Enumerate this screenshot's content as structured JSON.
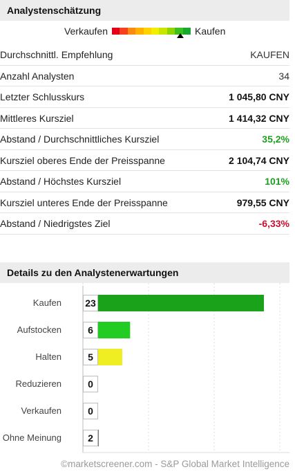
{
  "summary": {
    "title": "Analystenschätzung",
    "scale": {
      "left_label": "Verkaufen",
      "right_label": "Kaufen",
      "colors": [
        "#e3001b",
        "#f7411c",
        "#fb8a12",
        "#ffb000",
        "#ffd200",
        "#f2ee00",
        "#c8e600",
        "#8fd400",
        "#3dbf1f",
        "#17a92f"
      ],
      "marker_level": 0.87
    },
    "rows": [
      {
        "label": "Durchschnittl. Empfehlung",
        "value": "KAUFEN",
        "style": "plain"
      },
      {
        "label": "Anzahl Analysten",
        "value": "34",
        "style": "plain"
      },
      {
        "label": "Letzter Schlusskurs",
        "value": "1 045,80 CNY",
        "style": "bold"
      },
      {
        "label": "Mittleres Kursziel",
        "value": "1 414,32 CNY",
        "style": "bold"
      },
      {
        "label": "Abstand / Durchschnittliches Kursziel",
        "value": "35,2%",
        "style": "pos"
      },
      {
        "label": "Kursziel oberes Ende der Preisspanne",
        "value": "2 104,74 CNY",
        "style": "bold"
      },
      {
        "label": "Abstand / Höchstes Kursziel",
        "value": "101%",
        "style": "pos"
      },
      {
        "label": "Kursziel unteres Ende der Preisspanne",
        "value": "979,55 CNY",
        "style": "bold"
      },
      {
        "label": "Abstand / Niedrigstes Ziel",
        "value": "-6,33%",
        "style": "neg"
      }
    ]
  },
  "details": {
    "title": "Details zu den Analystenerwartungen"
  },
  "chart_data": {
    "type": "bar",
    "orientation": "horizontal",
    "categories": [
      "Kaufen",
      "Aufstocken",
      "Halten",
      "Reduzieren",
      "Verkaufen",
      "Ohne Meinung"
    ],
    "values": [
      23,
      6,
      5,
      0,
      0,
      2
    ],
    "value_labels": [
      "23",
      "6",
      "5",
      "0",
      "0",
      "2"
    ],
    "colors": [
      "#1aa31a",
      "#22cc22",
      "#eeee22",
      "#cccccc",
      "#cccccc",
      "#555555"
    ],
    "xlim": [
      0,
      23
    ],
    "grid": true,
    "legend": "none"
  },
  "footer": {
    "copyright": "©marketscreener.com - S&P Global Market Intelligence"
  }
}
